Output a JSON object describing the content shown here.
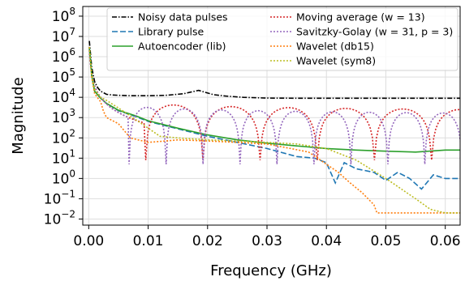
{
  "chart_data": {
    "type": "line",
    "xlabel": "Frequency (GHz)",
    "ylabel": "Magnitude",
    "xlim": [
      -0.001,
      0.0625
    ],
    "x_ticks": [
      0.0,
      0.01,
      0.02,
      0.03,
      0.04,
      0.05,
      0.06
    ],
    "x_tick_labels": [
      "0.00",
      "0.01",
      "0.02",
      "0.03",
      "0.04",
      "0.05",
      "0.06"
    ],
    "y_scale": "log",
    "ylim": [
      0.005,
      300000000
    ],
    "y_tick_exponents": [
      8,
      7,
      6,
      5,
      4,
      3,
      2,
      1,
      0,
      -1,
      -2
    ],
    "y_tick_base": "10",
    "grid": true,
    "legend_position": "top-right",
    "legend_columns": 2,
    "series": [
      {
        "name": "Noisy data pulses",
        "color": "#000000",
        "dash": "dashdot",
        "x": [
          0.0001,
          0.0005,
          0.001,
          0.0015,
          0.002,
          0.003,
          0.004,
          0.005,
          0.007,
          0.01,
          0.013,
          0.016,
          0.0175,
          0.0185,
          0.0195,
          0.021,
          0.023,
          0.026,
          0.03,
          0.035,
          0.04,
          0.045,
          0.05,
          0.055,
          0.06,
          0.0625
        ],
        "y": [
          6000000,
          300000,
          60000,
          30000,
          20000,
          14000,
          13000,
          12500,
          12000,
          12000,
          12500,
          15000,
          19000,
          22000,
          18000,
          13500,
          11500,
          10000,
          9200,
          9000,
          9000,
          9000,
          9000,
          9000,
          9000,
          9000
        ]
      },
      {
        "name": "Library pulse",
        "color": "#1f77b4",
        "dash": "dashed",
        "x": [
          0.0001,
          0.0005,
          0.001,
          0.002,
          0.003,
          0.005,
          0.008,
          0.01,
          0.015,
          0.02,
          0.025,
          0.03,
          0.035,
          0.038,
          0.04,
          0.0415,
          0.043,
          0.045,
          0.048,
          0.05,
          0.052,
          0.054,
          0.056,
          0.058,
          0.06,
          0.0625
        ],
        "y": [
          3000000,
          120000,
          20000,
          9000,
          5000,
          2200,
          1100,
          650,
          280,
          120,
          60,
          30,
          12,
          10,
          6,
          0.6,
          6,
          3,
          2,
          0.8,
          2,
          1,
          0.3,
          1.5,
          1,
          1
        ]
      },
      {
        "name": "Autoencoder (lib)",
        "color": "#2ca02c",
        "dash": "solid",
        "x": [
          0.0001,
          0.0005,
          0.001,
          0.002,
          0.003,
          0.005,
          0.008,
          0.01,
          0.015,
          0.02,
          0.025,
          0.03,
          0.035,
          0.04,
          0.045,
          0.05,
          0.055,
          0.06,
          0.0625
        ],
        "y": [
          3000000,
          120000,
          20000,
          9000,
          5000,
          2300,
          1200,
          700,
          300,
          140,
          80,
          55,
          40,
          30,
          25,
          22,
          20,
          25,
          25
        ]
      },
      {
        "name": "Moving average (w = 13)",
        "color": "#d62728",
        "dash": "dotted",
        "lobes": {
          "zeros_start": 0.0096,
          "zero_spacing": 0.00962,
          "zero_depth": 8,
          "peak_scale": 1.6
        }
      },
      {
        "name": "Savitzky-Golay (w = 31, p = 3)",
        "color": "#9467bd",
        "dash": "dotted",
        "lobes": {
          "zeros_start": 0.0068,
          "zero_spacing": 0.00622,
          "zero_depth": 5,
          "peak_scale": 1.2
        }
      },
      {
        "name": "Wavelet (db15)",
        "color": "#ff7f0e",
        "dash": "dotted",
        "x": [
          0.0001,
          0.0005,
          0.001,
          0.002,
          0.0025,
          0.003,
          0.005,
          0.007,
          0.01,
          0.013,
          0.015,
          0.02,
          0.025,
          0.03,
          0.034,
          0.037,
          0.04,
          0.042,
          0.044,
          0.046,
          0.048,
          0.0485,
          0.05,
          0.055,
          0.06,
          0.0625
        ],
        "y": [
          3000000,
          100000,
          15000,
          6000,
          2000,
          1000,
          500,
          100,
          60,
          70,
          80,
          70,
          60,
          50,
          30,
          20,
          5,
          2,
          0.6,
          0.2,
          0.05,
          0.02,
          0.02,
          0.02,
          0.02,
          0.02
        ]
      },
      {
        "name": "Wavelet (sym8)",
        "color": "#bcbd22",
        "dash": "dotted",
        "x": [
          0.0001,
          0.0005,
          0.001,
          0.002,
          0.003,
          0.005,
          0.007,
          0.01,
          0.012,
          0.015,
          0.02,
          0.025,
          0.03,
          0.035,
          0.04,
          0.045,
          0.05,
          0.055,
          0.0575,
          0.06,
          0.0625
        ],
        "y": [
          3000000,
          150000,
          25000,
          10000,
          7000,
          3000,
          1200,
          300,
          120,
          100,
          80,
          70,
          60,
          50,
          30,
          8,
          1,
          0.1,
          0.03,
          0.02,
          0.02
        ]
      }
    ]
  }
}
